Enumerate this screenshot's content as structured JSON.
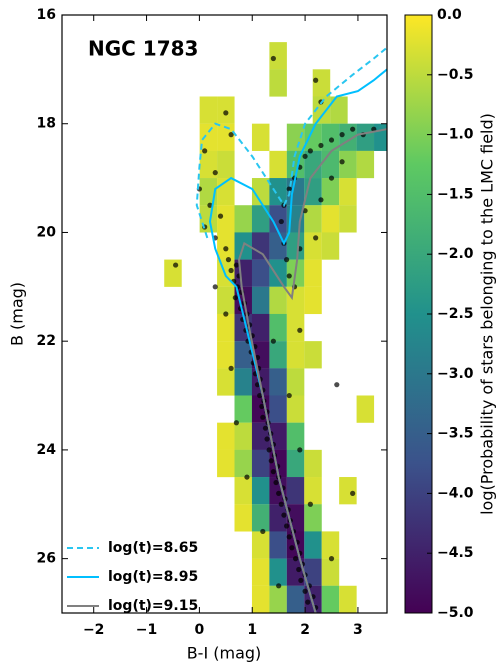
{
  "chart_data": {
    "type": "scatter",
    "title": "NGC 1783",
    "x_label": "B-I (mag)",
    "y_label": "B (mag)",
    "xlim": [
      -2.6,
      3.55
    ],
    "ylim": [
      27,
      16
    ],
    "xticks": [
      {
        "value": -2,
        "label": "−2"
      },
      {
        "value": -1,
        "label": "−1"
      },
      0,
      1,
      2,
      3
    ],
    "yticks": [
      16,
      18,
      20,
      22,
      24,
      26
    ],
    "legend": "lower left",
    "points": {
      "color": "#000000",
      "xy": [
        [
          0.55,
          20.5
        ],
        [
          0.7,
          20.6
        ],
        [
          0.6,
          20.7
        ],
        [
          0.75,
          20.8
        ],
        [
          0.65,
          20.9
        ],
        [
          0.72,
          21.0
        ],
        [
          0.8,
          21.1
        ],
        [
          0.68,
          21.2
        ],
        [
          0.85,
          21.3
        ],
        [
          0.78,
          21.4
        ],
        [
          0.9,
          21.5
        ],
        [
          0.82,
          21.6
        ],
        [
          0.95,
          21.7
        ],
        [
          0.88,
          21.8
        ],
        [
          1.0,
          21.9
        ],
        [
          0.92,
          22.0
        ],
        [
          1.05,
          22.1
        ],
        [
          0.98,
          22.2
        ],
        [
          1.1,
          22.3
        ],
        [
          1.02,
          22.4
        ],
        [
          1.12,
          22.5
        ],
        [
          1.06,
          22.6
        ],
        [
          1.15,
          22.7
        ],
        [
          1.1,
          22.8
        ],
        [
          1.2,
          22.9
        ],
        [
          1.14,
          23.0
        ],
        [
          1.22,
          23.1
        ],
        [
          1.18,
          23.2
        ],
        [
          1.28,
          23.3
        ],
        [
          1.2,
          23.4
        ],
        [
          1.3,
          23.5
        ],
        [
          1.25,
          23.6
        ],
        [
          1.35,
          23.7
        ],
        [
          1.28,
          23.8
        ],
        [
          1.4,
          23.9
        ],
        [
          1.32,
          24.0
        ],
        [
          1.42,
          24.1
        ],
        [
          1.36,
          24.2
        ],
        [
          1.48,
          24.3
        ],
        [
          1.4,
          24.4
        ],
        [
          1.5,
          24.5
        ],
        [
          1.45,
          24.6
        ],
        [
          1.58,
          24.7
        ],
        [
          1.5,
          24.8
        ],
        [
          1.62,
          24.9
        ],
        [
          1.55,
          25.0
        ],
        [
          1.68,
          25.1
        ],
        [
          1.6,
          25.2
        ],
        [
          1.72,
          25.3
        ],
        [
          1.65,
          25.4
        ],
        [
          1.78,
          25.5
        ],
        [
          1.7,
          25.6
        ],
        [
          1.85,
          25.7
        ],
        [
          1.75,
          25.8
        ],
        [
          1.9,
          25.9
        ],
        [
          1.82,
          26.0
        ],
        [
          1.95,
          26.1
        ],
        [
          1.88,
          26.2
        ],
        [
          2.0,
          26.3
        ],
        [
          1.92,
          26.4
        ],
        [
          2.08,
          26.5
        ],
        [
          2.0,
          26.6
        ],
        [
          2.15,
          26.7
        ],
        [
          2.05,
          26.8
        ],
        [
          2.2,
          26.9
        ],
        [
          0.3,
          21.0
        ],
        [
          0.5,
          21.5
        ],
        [
          1.4,
          22.0
        ],
        [
          0.6,
          22.5
        ],
        [
          1.7,
          23.0
        ],
        [
          0.7,
          23.5
        ],
        [
          1.9,
          24.0
        ],
        [
          0.9,
          24.5
        ],
        [
          2.1,
          25.0
        ],
        [
          1.2,
          25.5
        ],
        [
          2.5,
          26.0
        ],
        [
          1.5,
          26.5
        ],
        [
          2.6,
          22.8
        ],
        [
          2.9,
          24.8
        ],
        [
          1.9,
          21.8
        ],
        [
          0.1,
          19.9
        ],
        [
          0.2,
          19.5
        ],
        [
          0.0,
          19.2
        ],
        [
          0.3,
          18.9
        ],
        [
          0.1,
          18.5
        ],
        [
          0.4,
          19.7
        ],
        [
          0.3,
          20.1
        ],
        [
          0.5,
          20.3
        ],
        [
          0.6,
          18.2
        ],
        [
          0.5,
          17.8
        ],
        [
          -0.45,
          20.6
        ],
        [
          1.4,
          16.8
        ],
        [
          1.55,
          19.8
        ],
        [
          1.6,
          20.2
        ],
        [
          1.65,
          20.5
        ],
        [
          1.7,
          20.8
        ],
        [
          1.8,
          21.0
        ],
        [
          1.6,
          19.5
        ],
        [
          1.7,
          19.2
        ],
        [
          1.8,
          19.0
        ],
        [
          1.9,
          18.8
        ],
        [
          2.0,
          18.6
        ],
        [
          2.1,
          18.5
        ],
        [
          2.3,
          18.4
        ],
        [
          2.5,
          18.3
        ],
        [
          2.7,
          18.2
        ],
        [
          2.9,
          18.1
        ],
        [
          3.1,
          18.2
        ],
        [
          3.3,
          18.1
        ],
        [
          1.9,
          20.3
        ],
        [
          2.2,
          20.1
        ],
        [
          2.0,
          19.6
        ],
        [
          2.3,
          19.4
        ],
        [
          2.5,
          19.0
        ],
        [
          2.7,
          18.7
        ],
        [
          2.3,
          17.6
        ],
        [
          2.2,
          17.2
        ]
      ]
    },
    "cells": [
      [
        1.49,
        16.75,
        -0.4
      ],
      [
        1.49,
        17.25,
        -0.5
      ],
      [
        2.31,
        17.25,
        -0.4
      ],
      [
        0.17,
        17.75,
        -0.3
      ],
      [
        0.5,
        17.75,
        -0.3
      ],
      [
        2.31,
        17.75,
        -0.5
      ],
      [
        2.64,
        17.75,
        -0.6
      ],
      [
        0.17,
        18.25,
        -0.2
      ],
      [
        0.5,
        18.25,
        -0.2
      ],
      [
        1.16,
        18.25,
        -0.3
      ],
      [
        1.82,
        18.25,
        -0.9
      ],
      [
        2.15,
        18.25,
        -1.2
      ],
      [
        2.48,
        18.25,
        -1.5
      ],
      [
        2.81,
        18.25,
        -1.8
      ],
      [
        3.14,
        18.25,
        -2.2
      ],
      [
        3.47,
        18.25,
        -2.5
      ],
      [
        0.17,
        18.75,
        -0.3
      ],
      [
        0.5,
        18.75,
        -0.4
      ],
      [
        1.49,
        18.75,
        -0.3
      ],
      [
        1.82,
        18.75,
        -1.5
      ],
      [
        2.15,
        18.75,
        -2.0
      ],
      [
        2.48,
        18.75,
        -1.6
      ],
      [
        2.81,
        18.75,
        -0.9
      ],
      [
        3.14,
        18.75,
        -0.6
      ],
      [
        0.17,
        19.25,
        -0.6
      ],
      [
        0.5,
        19.25,
        -0.3
      ],
      [
        1.16,
        19.25,
        -0.5
      ],
      [
        1.49,
        19.25,
        -2.5
      ],
      [
        1.82,
        19.25,
        -3.0
      ],
      [
        2.15,
        19.25,
        -2.2
      ],
      [
        2.48,
        19.25,
        -1.0
      ],
      [
        2.81,
        19.25,
        -0.3
      ],
      [
        0.17,
        19.75,
        -0.5
      ],
      [
        0.5,
        19.75,
        -0.2
      ],
      [
        0.83,
        19.75,
        -0.8
      ],
      [
        1.16,
        19.75,
        -2.2
      ],
      [
        1.49,
        19.75,
        -3.8
      ],
      [
        1.82,
        19.75,
        -2.8
      ],
      [
        2.15,
        19.75,
        -0.6
      ],
      [
        2.48,
        19.75,
        -0.2
      ],
      [
        2.81,
        19.75,
        -0.4
      ],
      [
        0.5,
        20.25,
        -0.2
      ],
      [
        0.83,
        20.25,
        -2.5
      ],
      [
        1.16,
        20.25,
        -4.2
      ],
      [
        1.49,
        20.25,
        -3.5
      ],
      [
        1.82,
        20.25,
        -2.2
      ],
      [
        2.15,
        20.25,
        -0.3
      ],
      [
        2.48,
        20.25,
        -0.4
      ],
      [
        -0.5,
        20.75,
        -0.3
      ],
      [
        0.5,
        20.75,
        -0.3
      ],
      [
        0.83,
        20.75,
        -4.5
      ],
      [
        1.16,
        20.75,
        -3.8
      ],
      [
        1.49,
        20.75,
        -2.5
      ],
      [
        1.82,
        20.75,
        -1.0
      ],
      [
        2.15,
        20.75,
        -0.2
      ],
      [
        0.5,
        21.25,
        -0.4
      ],
      [
        0.83,
        21.25,
        -4.8
      ],
      [
        1.16,
        21.25,
        -3.0
      ],
      [
        1.49,
        21.25,
        -0.6
      ],
      [
        1.82,
        21.25,
        -0.3
      ],
      [
        2.15,
        21.25,
        -0.2
      ],
      [
        0.5,
        21.75,
        -0.2
      ],
      [
        0.83,
        21.75,
        -4.2
      ],
      [
        1.16,
        21.75,
        -4.5
      ],
      [
        1.49,
        21.75,
        -1.5
      ],
      [
        1.82,
        21.75,
        -0.3
      ],
      [
        0.5,
        22.25,
        -0.2
      ],
      [
        0.83,
        22.25,
        -3.5
      ],
      [
        1.16,
        22.25,
        -4.8
      ],
      [
        1.49,
        22.25,
        -2.0
      ],
      [
        1.82,
        22.25,
        -0.3
      ],
      [
        2.15,
        22.25,
        -0.4
      ],
      [
        0.5,
        22.75,
        -0.3
      ],
      [
        0.83,
        22.75,
        -2.8
      ],
      [
        1.16,
        22.75,
        -4.6
      ],
      [
        1.49,
        22.75,
        -3.5
      ],
      [
        1.82,
        22.75,
        -0.5
      ],
      [
        0.83,
        23.25,
        -1.2
      ],
      [
        1.16,
        23.25,
        -4.9
      ],
      [
        1.49,
        23.25,
        -3.8
      ],
      [
        1.82,
        23.25,
        -0.4
      ],
      [
        3.14,
        23.25,
        -0.3
      ],
      [
        0.5,
        23.75,
        -0.2
      ],
      [
        0.83,
        23.75,
        -0.5
      ],
      [
        1.16,
        23.75,
        -4.5
      ],
      [
        1.49,
        23.75,
        -4.6
      ],
      [
        1.82,
        23.75,
        -1.5
      ],
      [
        0.5,
        24.25,
        -0.2
      ],
      [
        0.83,
        24.25,
        -0.8
      ],
      [
        1.16,
        24.25,
        -4.0
      ],
      [
        1.49,
        24.25,
        -4.9
      ],
      [
        1.82,
        24.25,
        -2.0
      ],
      [
        2.15,
        24.25,
        -0.4
      ],
      [
        0.83,
        24.75,
        -0.3
      ],
      [
        1.16,
        24.75,
        -2.5
      ],
      [
        1.49,
        24.75,
        -4.8
      ],
      [
        1.82,
        24.75,
        -4.2
      ],
      [
        2.15,
        24.75,
        -0.3
      ],
      [
        2.81,
        24.75,
        -0.3
      ],
      [
        0.83,
        25.25,
        -0.2
      ],
      [
        1.16,
        25.25,
        -1.8
      ],
      [
        1.49,
        25.25,
        -4.5
      ],
      [
        1.82,
        25.25,
        -4.8
      ],
      [
        2.15,
        25.25,
        -1.0
      ],
      [
        1.16,
        25.75,
        -0.3
      ],
      [
        1.49,
        25.75,
        -3.8
      ],
      [
        1.82,
        25.75,
        -4.9
      ],
      [
        2.15,
        25.75,
        -2.5
      ],
      [
        2.48,
        25.75,
        -0.3
      ],
      [
        1.16,
        26.25,
        -0.2
      ],
      [
        1.49,
        26.25,
        -2.5
      ],
      [
        1.82,
        26.25,
        -4.6
      ],
      [
        2.15,
        26.25,
        -4.0
      ],
      [
        2.48,
        26.25,
        -0.4
      ],
      [
        1.16,
        26.75,
        -0.2
      ],
      [
        1.49,
        26.75,
        -0.8
      ],
      [
        1.82,
        26.75,
        -3.5
      ],
      [
        2.15,
        26.75,
        -4.5
      ],
      [
        2.48,
        26.75,
        -1.2
      ],
      [
        2.81,
        26.75,
        -0.3
      ]
    ],
    "series": [
      {
        "name": "log(t)=8.65",
        "color": "#29c6f0",
        "dashed": true,
        "x": [
          0.15,
          -0.05,
          0.0,
          0.05,
          0.3,
          0.6,
          1.0,
          1.4,
          1.6,
          1.7,
          1.8,
          2.0,
          2.4,
          2.9,
          3.3,
          3.55
        ],
        "y": [
          20.1,
          19.5,
          18.8,
          18.3,
          18.0,
          18.1,
          18.6,
          19.2,
          19.5,
          19.3,
          18.6,
          18.0,
          17.5,
          17.1,
          16.8,
          16.6
        ]
      },
      {
        "name": "log(t)=8.95",
        "color": "#00bfff",
        "dashed": false,
        "x": [
          2.2,
          1.9,
          1.5,
          1.2,
          0.9,
          0.7,
          0.5,
          0.3,
          0.2,
          0.3,
          0.6,
          1.0,
          1.4,
          1.6,
          1.7,
          1.75,
          1.9,
          2.2,
          2.6,
          3.0,
          3.3,
          3.55
        ],
        "y": [
          27.0,
          26.0,
          24.5,
          23.0,
          21.8,
          21.0,
          20.8,
          20.3,
          19.8,
          19.2,
          19.0,
          19.2,
          19.8,
          20.2,
          20.0,
          19.3,
          18.6,
          18.0,
          17.5,
          17.4,
          17.2,
          17.0
        ]
      },
      {
        "name": "log(t)=9.15",
        "color": "#808080",
        "dashed": false,
        "x": [
          2.2,
          1.9,
          1.5,
          1.2,
          0.95,
          0.8,
          0.75,
          0.85,
          1.2,
          1.6,
          1.75,
          1.85,
          1.9,
          2.1,
          2.5,
          3.0,
          3.55
        ],
        "y": [
          27.0,
          26.0,
          24.5,
          23.0,
          21.8,
          21.0,
          20.5,
          20.2,
          20.4,
          21.0,
          21.2,
          20.5,
          19.8,
          19.0,
          18.5,
          18.2,
          18.1
        ]
      }
    ],
    "colorbar": {
      "label": "log(Probability of stars belonging to the LMC field)",
      "colormap": "viridis",
      "lim": [
        -5,
        0
      ],
      "ticks": [
        {
          "value": 0,
          "label": "0.0"
        },
        {
          "value": -0.5,
          "label": "−0.5"
        },
        {
          "value": -1,
          "label": "−1.0"
        },
        {
          "value": -1.5,
          "label": "−1.5"
        },
        {
          "value": -2,
          "label": "−2.0"
        },
        {
          "value": -2.5,
          "label": "−2.5"
        },
        {
          "value": -3,
          "label": "−3.0"
        },
        {
          "value": -3.5,
          "label": "−3.5"
        },
        {
          "value": -4,
          "label": "−4.0"
        },
        {
          "value": -4.5,
          "label": "−4.5"
        },
        {
          "value": -5,
          "label": "−5.0"
        }
      ]
    }
  }
}
